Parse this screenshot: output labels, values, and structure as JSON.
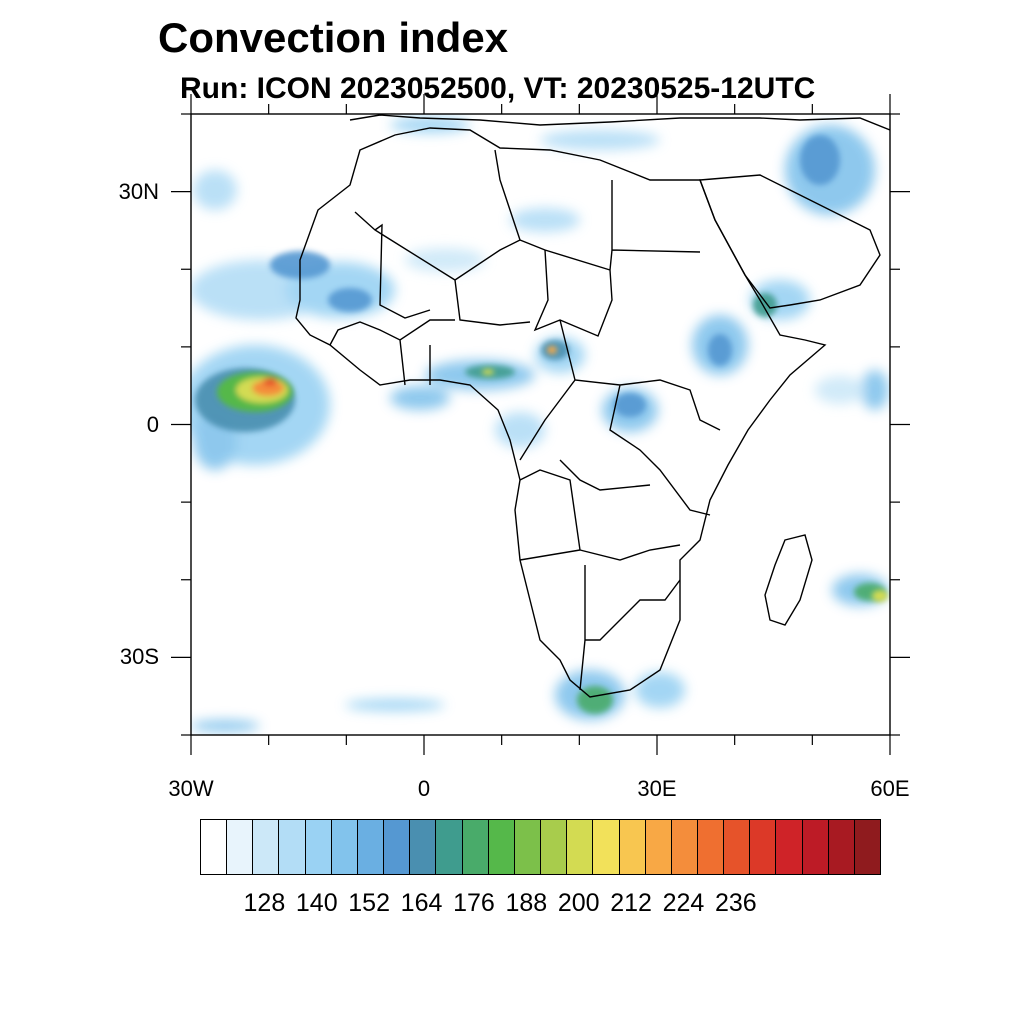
{
  "title": "Convection index",
  "subtitle": "Run: ICON 2023052500,  VT: 20230525-12UTC",
  "map": {
    "lon_range": [
      -30,
      60
    ],
    "lat_range": [
      -40,
      40
    ],
    "lat_ticks": [
      {
        "value": 30,
        "label": "30N"
      },
      {
        "value": 0,
        "label": "0"
      },
      {
        "value": -30,
        "label": "30S"
      }
    ],
    "lon_ticks": [
      {
        "value": -30,
        "label": "30W"
      },
      {
        "value": 0,
        "label": "0"
      },
      {
        "value": 30,
        "label": "30E"
      },
      {
        "value": 60,
        "label": "60E"
      }
    ],
    "coastline_color": "#000000",
    "land_fill": "#ffffff"
  },
  "colorbar": {
    "colors": [
      "#ffffff",
      "#e8f4fc",
      "#cce8f8",
      "#b3ddf6",
      "#9ad2f3",
      "#82c3ec",
      "#6aafe2",
      "#5598d2",
      "#4a8fb0",
      "#3f9c8e",
      "#49ab6a",
      "#55b84a",
      "#7cc04a",
      "#a8cc4c",
      "#d3db52",
      "#f2e15a",
      "#f8c650",
      "#f8a845",
      "#f48d3b",
      "#ef6f30",
      "#e6532a",
      "#dc3928",
      "#cf2328",
      "#bd1b26",
      "#a81a22",
      "#8f1b1e"
    ],
    "labels": [
      "128",
      "140",
      "152",
      "164",
      "176",
      "188",
      "200",
      "212",
      "224",
      "236"
    ]
  }
}
